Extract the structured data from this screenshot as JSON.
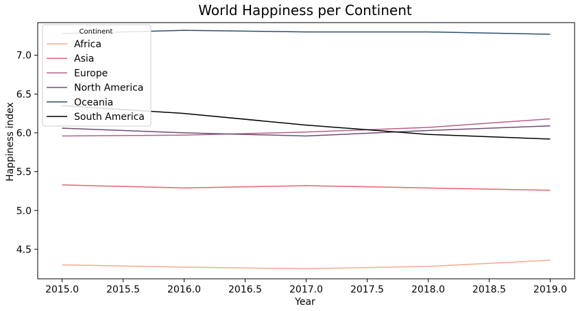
{
  "chart_data": {
    "type": "line",
    "title": "World Happiness per Continent",
    "xlabel": "Year",
    "ylabel": "Happiness index",
    "x": [
      2015,
      2016,
      2017,
      2018,
      2019
    ],
    "xlim": [
      2014.8,
      2019.2
    ],
    "ylim": [
      4.12,
      7.42
    ],
    "xticks": [
      2015.0,
      2015.5,
      2016.0,
      2016.5,
      2017.0,
      2017.5,
      2018.0,
      2018.5,
      2019.0
    ],
    "xtick_labels": [
      "2015.0",
      "2015.5",
      "2016.0",
      "2016.5",
      "2017.0",
      "2017.5",
      "2018.0",
      "2018.5",
      "2019.0"
    ],
    "yticks": [
      4.5,
      5.0,
      5.5,
      6.0,
      6.5,
      7.0
    ],
    "ytick_labels": [
      "4.5",
      "5.0",
      "5.5",
      "6.0",
      "6.5",
      "7.0"
    ],
    "grid": false,
    "legend": {
      "title": "Continent",
      "placement": "top-left"
    },
    "series": [
      {
        "name": "Africa",
        "color": "#f7a98b",
        "values": [
          4.3,
          4.27,
          4.25,
          4.28,
          4.36
        ]
      },
      {
        "name": "Asia",
        "color": "#e8606f",
        "values": [
          5.33,
          5.29,
          5.32,
          5.29,
          5.26
        ]
      },
      {
        "name": "Europe",
        "color": "#b85e85",
        "values": [
          5.96,
          5.97,
          6.01,
          6.07,
          6.18
        ]
      },
      {
        "name": "North America",
        "color": "#6e4b73",
        "values": [
          6.06,
          6.0,
          5.96,
          6.03,
          6.09
        ]
      },
      {
        "name": "Oceania",
        "color": "#2e4e6b",
        "values": [
          7.28,
          7.32,
          7.3,
          7.3,
          7.27
        ]
      },
      {
        "name": "South America",
        "color": "#000000",
        "values": [
          6.35,
          6.25,
          6.1,
          5.98,
          5.92
        ]
      }
    ]
  }
}
